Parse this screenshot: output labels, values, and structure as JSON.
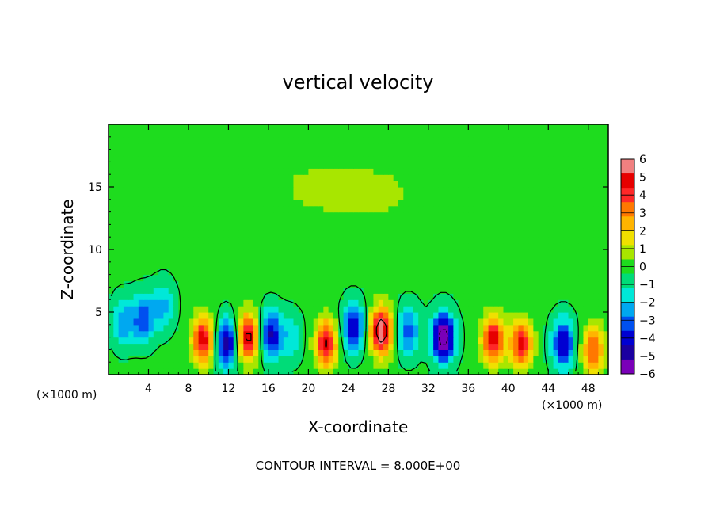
{
  "chart_data": {
    "type": "heatmap",
    "title": "vertical velocity",
    "xlabel": "X-coordinate",
    "ylabel": "Z-coordinate",
    "x_unit": "(×1000 m)",
    "xlim": [
      0,
      50
    ],
    "ylim": [
      0,
      20
    ],
    "x_ticks": [
      4,
      8,
      12,
      16,
      20,
      24,
      28,
      32,
      36,
      40,
      44,
      48
    ],
    "y_ticks": [
      5,
      10,
      15
    ],
    "colorbar": {
      "ticks": [
        6,
        5,
        4,
        3,
        2,
        1,
        0,
        -1,
        -2,
        -3,
        -4,
        -5,
        -6
      ],
      "range": [
        -6,
        6
      ],
      "colors": [
        "#7a00b8",
        "#1a00a0",
        "#0000d2",
        "#0050f0",
        "#00a8f0",
        "#00e8d8",
        "#00dc78",
        "#1edc1e",
        "#a8e600",
        "#f0e000",
        "#ffb400",
        "#ff7800",
        "#ff2828",
        "#e60000",
        "#f08080"
      ]
    },
    "features": [
      {
        "x": 1.5,
        "z": 4.2,
        "w": -3.0
      },
      {
        "x": 3.5,
        "z": 4.5,
        "w": -4.0
      },
      {
        "x": 5.5,
        "z": 5.5,
        "w": -2.5
      },
      {
        "x": 9.5,
        "z": 2.8,
        "w": 6.5
      },
      {
        "x": 11.8,
        "z": 2.5,
        "w": -6.0
      },
      {
        "x": 14.0,
        "z": 3.0,
        "w": 7.0
      },
      {
        "x": 16.2,
        "z": 3.2,
        "w": -5.5
      },
      {
        "x": 18.3,
        "z": 3.0,
        "w": -2.0
      },
      {
        "x": 21.8,
        "z": 2.5,
        "w": 6.5
      },
      {
        "x": 24.5,
        "z": 3.8,
        "w": -5.0
      },
      {
        "x": 27.3,
        "z": 3.5,
        "w": 8.0
      },
      {
        "x": 30.0,
        "z": 3.5,
        "w": -4.0
      },
      {
        "x": 33.5,
        "z": 3.0,
        "w": -8.0
      },
      {
        "x": 38.5,
        "z": 2.8,
        "w": 6.5
      },
      {
        "x": 41.3,
        "z": 2.5,
        "w": 6.0
      },
      {
        "x": 45.5,
        "z": 2.5,
        "w": -5.5
      },
      {
        "x": 48.5,
        "z": 2.0,
        "w": 5.0
      },
      {
        "x": 20.0,
        "z": 15.0,
        "w": 0.8
      },
      {
        "x": 27.0,
        "z": 14.5,
        "w": 0.9
      },
      {
        "x": 40.0,
        "z": 16.0,
        "w": 0.6
      }
    ],
    "contour_interval": "CONTOUR INTERVAL = 8.000E+00"
  }
}
